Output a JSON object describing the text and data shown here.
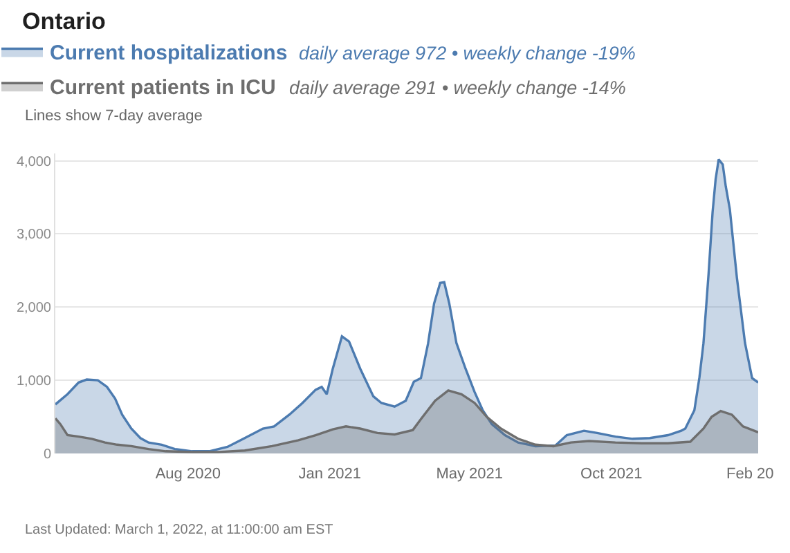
{
  "chart_data": {
    "type": "area",
    "title": "Ontario",
    "subtitle": "Lines show 7-day average",
    "annotations": [
      "daily average 972 • weekly change -19%",
      "daily average 291 • weekly change -14%",
      "Last Updated: March 1, 2022, at 11:00:00 am EST"
    ],
    "xlim": [
      "2020-04-05",
      "2022-02-28"
    ],
    "xticks": [
      {
        "value": "2020-08-14",
        "label": "Aug 2020"
      },
      {
        "value": "2021-01-01",
        "label": "Jan 2021"
      },
      {
        "value": "2021-05-19",
        "label": "May 2021"
      },
      {
        "value": "2021-10-06",
        "label": "Oct 2021"
      },
      {
        "value": "2022-02-20",
        "label": "Feb 20"
      }
    ],
    "ylim": [
      0,
      4100
    ],
    "yticks": [
      0,
      {
        "value": 1000,
        "label": "1,000"
      },
      {
        "value": 2000,
        "label": "2,000"
      },
      {
        "value": 3000,
        "label": "3,000"
      },
      {
        "value": 4000,
        "label": "4,000"
      }
    ],
    "grid": "y",
    "legend": "top left",
    "series": [
      {
        "name": "Current hospitalizations",
        "color": "#4c7bb0",
        "x": [
          "2020-04-05",
          "2020-04-17",
          "2020-04-28",
          "2020-05-06",
          "2020-05-17",
          "2020-05-26",
          "2020-06-03",
          "2020-06-10",
          "2020-06-19",
          "2020-06-28",
          "2020-07-06",
          "2020-07-19",
          "2020-08-01",
          "2020-08-18",
          "2020-09-04",
          "2020-09-22",
          "2020-10-09",
          "2020-10-27",
          "2020-11-07",
          "2020-11-22",
          "2020-12-05",
          "2020-12-18",
          "2020-12-24",
          "2020-12-29",
          "2021-01-04",
          "2021-01-13",
          "2021-01-20",
          "2021-01-31",
          "2021-02-13",
          "2021-02-21",
          "2021-03-06",
          "2021-03-17",
          "2021-03-25",
          "2021-04-01",
          "2021-04-08",
          "2021-04-14",
          "2021-04-20",
          "2021-04-24",
          "2021-04-29",
          "2021-05-06",
          "2021-05-15",
          "2021-05-24",
          "2021-06-01",
          "2021-06-10",
          "2021-06-23",
          "2021-07-06",
          "2021-07-23",
          "2021-08-12",
          "2021-08-23",
          "2021-09-09",
          "2021-09-22",
          "2021-10-10",
          "2021-10-27",
          "2021-11-13",
          "2021-12-01",
          "2021-12-14",
          "2021-12-18",
          "2021-12-27",
          "2022-01-01",
          "2022-01-05",
          "2022-01-10",
          "2022-01-14",
          "2022-01-17",
          "2022-01-20",
          "2022-01-24",
          "2022-01-27",
          "2022-01-31",
          "2022-02-07",
          "2022-02-15",
          "2022-02-22",
          "2022-02-28"
        ],
        "values": [
          670,
          810,
          970,
          1010,
          1000,
          910,
          750,
          530,
          340,
          210,
          150,
          120,
          60,
          30,
          30,
          90,
          210,
          340,
          370,
          530,
          690,
          870,
          910,
          810,
          1160,
          1600,
          1530,
          1160,
          780,
          690,
          640,
          720,
          980,
          1030,
          1500,
          2050,
          2330,
          2340,
          2050,
          1510,
          1160,
          840,
          590,
          400,
          250,
          150,
          100,
          110,
          250,
          310,
          280,
          230,
          200,
          210,
          250,
          310,
          340,
          590,
          1040,
          1510,
          2450,
          3300,
          3750,
          4020,
          3950,
          3650,
          3340,
          2400,
          1510,
          1030,
          970
        ]
      },
      {
        "name": "Current patients in ICU",
        "color": "#6e6e6e",
        "x": [
          "2020-04-05",
          "2020-04-10",
          "2020-04-17",
          "2020-04-28",
          "2020-05-11",
          "2020-05-24",
          "2020-06-05",
          "2020-06-19",
          "2020-07-06",
          "2020-07-23",
          "2020-08-18",
          "2020-09-13",
          "2020-10-09",
          "2020-11-05",
          "2020-12-01",
          "2020-12-18",
          "2021-01-04",
          "2021-01-17",
          "2021-01-31",
          "2021-02-17",
          "2021-03-06",
          "2021-03-24",
          "2021-04-01",
          "2021-04-15",
          "2021-04-28",
          "2021-05-11",
          "2021-05-24",
          "2021-06-05",
          "2021-06-19",
          "2021-07-06",
          "2021-07-23",
          "2021-08-10",
          "2021-08-27",
          "2021-09-14",
          "2021-10-10",
          "2021-11-05",
          "2021-12-01",
          "2021-12-23",
          "2022-01-05",
          "2022-01-13",
          "2022-01-22",
          "2022-02-02",
          "2022-02-13",
          "2022-02-28"
        ],
        "values": [
          480,
          400,
          250,
          230,
          200,
          150,
          120,
          100,
          60,
          30,
          20,
          20,
          40,
          100,
          180,
          250,
          330,
          370,
          340,
          280,
          260,
          320,
          470,
          720,
          860,
          810,
          690,
          500,
          340,
          200,
          120,
          100,
          150,
          170,
          150,
          140,
          140,
          160,
          340,
          500,
          580,
          530,
          370,
          290
        ]
      }
    ]
  }
}
